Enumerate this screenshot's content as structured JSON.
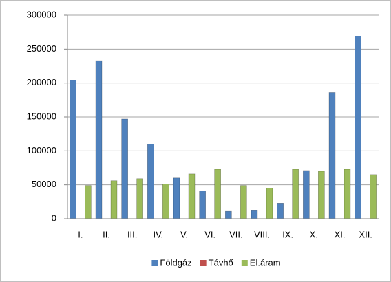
{
  "chart_data": {
    "type": "bar",
    "categories": [
      "I.",
      "II.",
      "III.",
      "IV.",
      "V.",
      "VI.",
      "VII.",
      "VIII.",
      "IX.",
      "X.",
      "XI.",
      "XII."
    ],
    "series": [
      {
        "name": "Földgáz",
        "color": "#4f81bd",
        "values": [
          204000,
          233000,
          147000,
          110000,
          60000,
          41000,
          11000,
          12000,
          23000,
          71000,
          186000,
          269000
        ]
      },
      {
        "name": "Távhő",
        "color": "#c0504d",
        "values": [
          0,
          0,
          0,
          0,
          0,
          0,
          0,
          0,
          0,
          0,
          0,
          0
        ]
      },
      {
        "name": "El.áram",
        "color": "#9bbb59",
        "values": [
          49000,
          56000,
          59000,
          51000,
          66000,
          73000,
          49000,
          45000,
          73000,
          70000,
          73000,
          65000
        ]
      }
    ],
    "ylim": [
      0,
      300000
    ],
    "yticks": [
      0,
      50000,
      100000,
      150000,
      200000,
      250000,
      300000
    ],
    "grid": true,
    "legend": "bottom"
  }
}
